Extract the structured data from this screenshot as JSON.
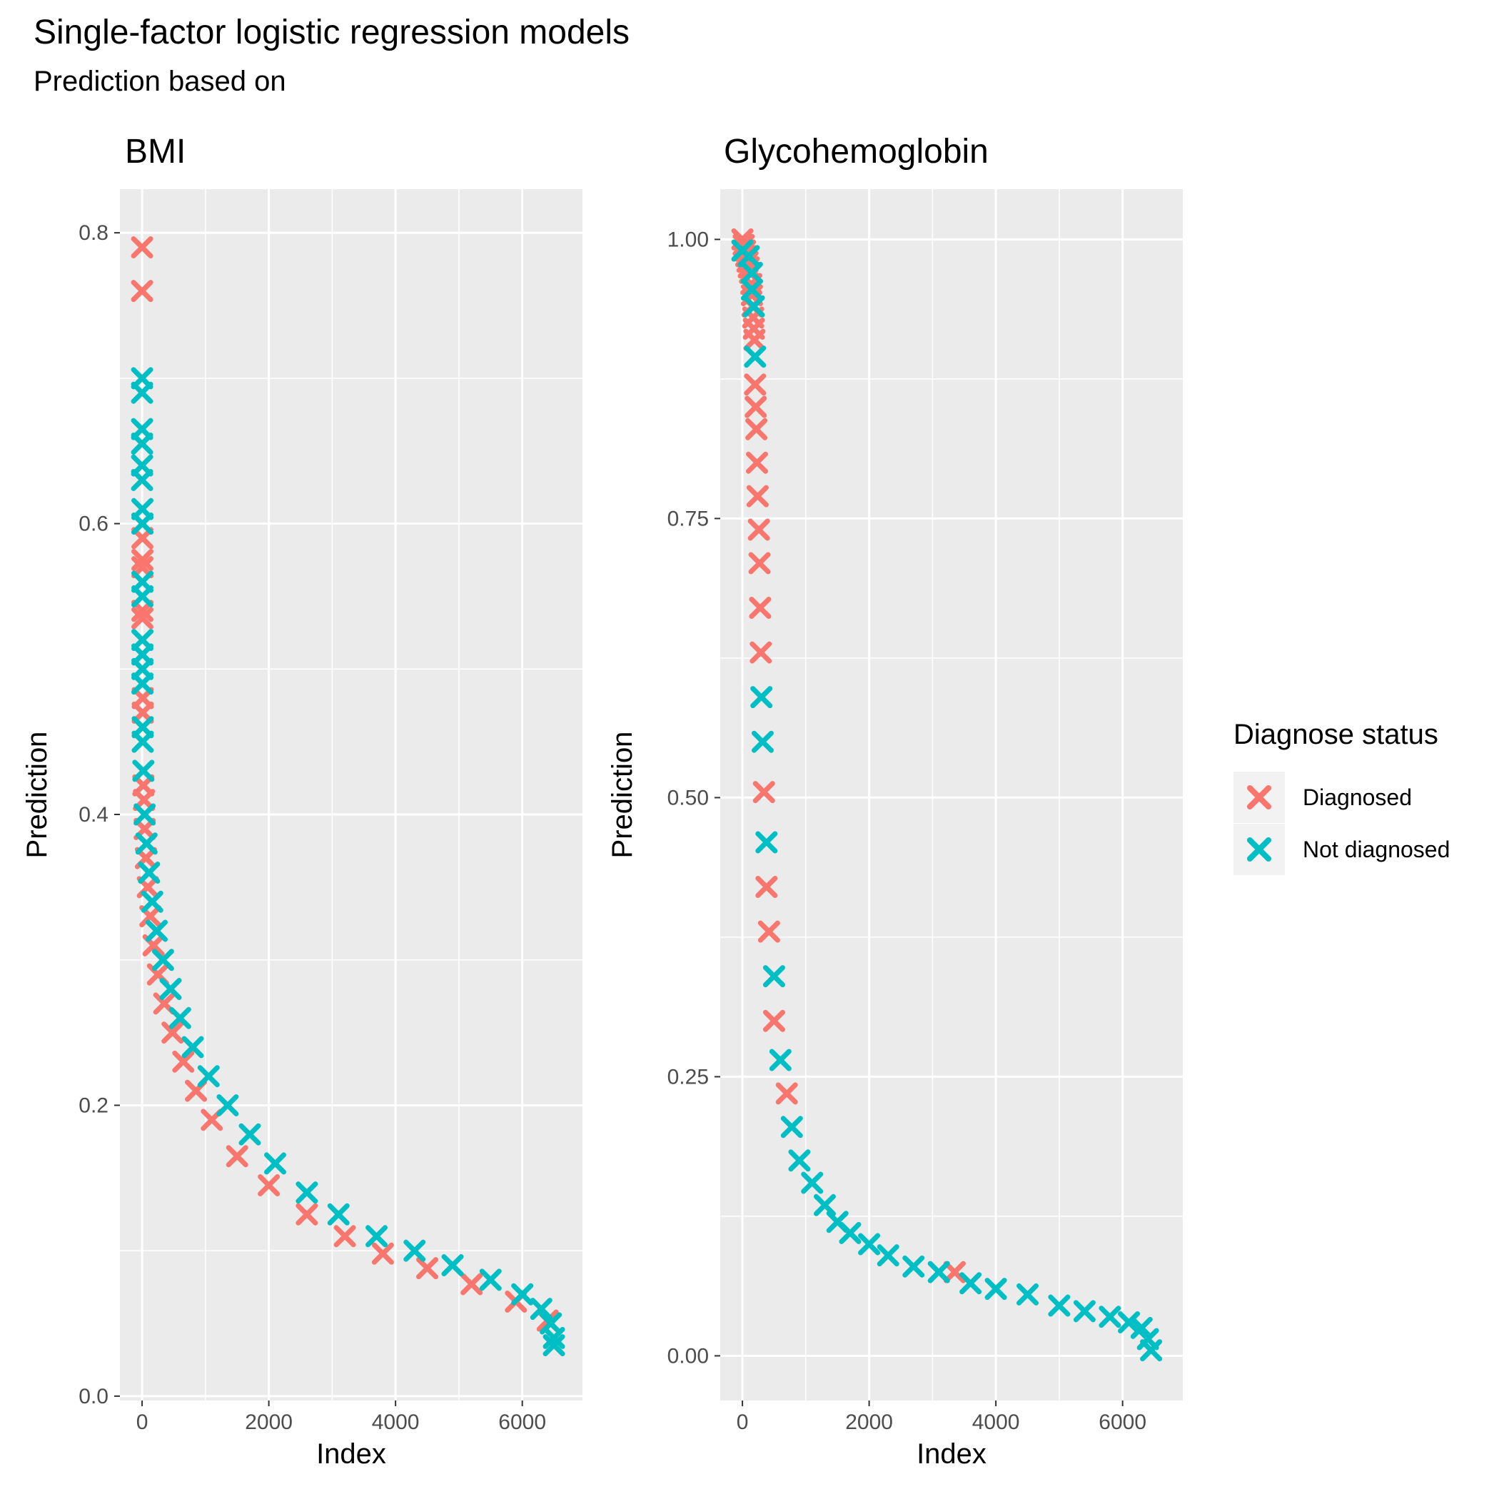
{
  "title": "Single-factor logistic regression models",
  "subtitle": "Prediction based on",
  "chart_data": [
    {
      "type": "scatter",
      "panel_title": "BMI",
      "xlabel": "Index",
      "ylabel": "Prediction",
      "xlim": [
        -350,
        6950
      ],
      "ylim": [
        -0.003,
        0.83
      ],
      "xticks": [
        0,
        2000,
        4000,
        6000
      ],
      "xtick_labels": [
        "0",
        "2000",
        "4000",
        "6000"
      ],
      "yticks": [
        0,
        0.2,
        0.4,
        0.6,
        0.8
      ],
      "ytick_labels": [
        "0.0",
        "0.2",
        "0.4",
        "0.6",
        "0.8"
      ],
      "grid": true,
      "series": [
        {
          "name": "Diagnosed",
          "color": "#F8766D",
          "points": [
            [
              0,
              0.79
            ],
            [
              0,
              0.76
            ],
            [
              5,
              0.6
            ],
            [
              5,
              0.59
            ],
            [
              5,
              0.575
            ],
            [
              5,
              0.57
            ],
            [
              5,
              0.54
            ],
            [
              5,
              0.535
            ],
            [
              10,
              0.48
            ],
            [
              10,
              0.47
            ],
            [
              20,
              0.42
            ],
            [
              30,
              0.41
            ],
            [
              40,
              0.39
            ],
            [
              60,
              0.37
            ],
            [
              90,
              0.35
            ],
            [
              130,
              0.33
            ],
            [
              180,
              0.31
            ],
            [
              250,
              0.29
            ],
            [
              350,
              0.27
            ],
            [
              480,
              0.25
            ],
            [
              650,
              0.23
            ],
            [
              850,
              0.21
            ],
            [
              1100,
              0.19
            ],
            [
              1500,
              0.165
            ],
            [
              2000,
              0.145
            ],
            [
              2600,
              0.125
            ],
            [
              3200,
              0.11
            ],
            [
              3800,
              0.098
            ],
            [
              4500,
              0.088
            ],
            [
              5200,
              0.077
            ],
            [
              5900,
              0.065
            ],
            [
              6400,
              0.052
            ]
          ]
        },
        {
          "name": "Not diagnosed",
          "color": "#00BFC4",
          "points": [
            [
              0,
              0.7
            ],
            [
              0,
              0.69
            ],
            [
              0,
              0.665
            ],
            [
              0,
              0.655
            ],
            [
              0,
              0.64
            ],
            [
              0,
              0.63
            ],
            [
              5,
              0.61
            ],
            [
              5,
              0.6
            ],
            [
              5,
              0.56
            ],
            [
              5,
              0.55
            ],
            [
              5,
              0.52
            ],
            [
              5,
              0.51
            ],
            [
              5,
              0.5
            ],
            [
              5,
              0.49
            ],
            [
              10,
              0.46
            ],
            [
              10,
              0.45
            ],
            [
              20,
              0.43
            ],
            [
              40,
              0.4
            ],
            [
              70,
              0.38
            ],
            [
              110,
              0.36
            ],
            [
              160,
              0.34
            ],
            [
              230,
              0.32
            ],
            [
              330,
              0.3
            ],
            [
              450,
              0.28
            ],
            [
              600,
              0.26
            ],
            [
              800,
              0.24
            ],
            [
              1050,
              0.22
            ],
            [
              1350,
              0.2
            ],
            [
              1700,
              0.18
            ],
            [
              2100,
              0.16
            ],
            [
              2600,
              0.14
            ],
            [
              3100,
              0.125
            ],
            [
              3700,
              0.11
            ],
            [
              4300,
              0.1
            ],
            [
              4900,
              0.09
            ],
            [
              5500,
              0.08
            ],
            [
              6000,
              0.07
            ],
            [
              6300,
              0.06
            ],
            [
              6450,
              0.05
            ],
            [
              6500,
              0.04
            ],
            [
              6500,
              0.035
            ]
          ]
        }
      ]
    },
    {
      "type": "scatter",
      "panel_title": "Glycohemoglobin",
      "xlabel": "Index",
      "ylabel": "Prediction",
      "xlim": [
        -350,
        6950
      ],
      "ylim": [
        -0.04,
        1.045
      ],
      "xticks": [
        0,
        2000,
        4000,
        6000
      ],
      "xtick_labels": [
        "0",
        "2000",
        "4000",
        "6000"
      ],
      "yticks": [
        0,
        0.25,
        0.5,
        0.75,
        1.0
      ],
      "ytick_labels": [
        "0.00",
        "0.25",
        "0.50",
        "0.75",
        "1.00"
      ],
      "grid": true,
      "series": [
        {
          "name": "Diagnosed",
          "color": "#F8766D",
          "points": [
            [
              0,
              1.0
            ],
            [
              20,
              0.995
            ],
            [
              40,
              0.99
            ],
            [
              60,
              0.985
            ],
            [
              80,
              0.98
            ],
            [
              100,
              0.975
            ],
            [
              120,
              0.97
            ],
            [
              140,
              0.96
            ],
            [
              150,
              0.95
            ],
            [
              160,
              0.94
            ],
            [
              170,
              0.93
            ],
            [
              180,
              0.92
            ],
            [
              190,
              0.91
            ],
            [
              200,
              0.87
            ],
            [
              210,
              0.85
            ],
            [
              220,
              0.83
            ],
            [
              230,
              0.8
            ],
            [
              240,
              0.77
            ],
            [
              260,
              0.74
            ],
            [
              270,
              0.71
            ],
            [
              280,
              0.67
            ],
            [
              290,
              0.63
            ],
            [
              340,
              0.505
            ],
            [
              380,
              0.42
            ],
            [
              420,
              0.38
            ],
            [
              500,
              0.3
            ],
            [
              700,
              0.235
            ],
            [
              3350,
              0.075
            ]
          ]
        },
        {
          "name": "Not diagnosed",
          "color": "#00BFC4",
          "points": [
            [
              0,
              0.99
            ],
            [
              100,
              0.985
            ],
            [
              150,
              0.97
            ],
            [
              150,
              0.955
            ],
            [
              180,
              0.94
            ],
            [
              200,
              0.895
            ],
            [
              300,
              0.59
            ],
            [
              320,
              0.55
            ],
            [
              380,
              0.46
            ],
            [
              500,
              0.34
            ],
            [
              600,
              0.265
            ],
            [
              780,
              0.205
            ],
            [
              900,
              0.175
            ],
            [
              1100,
              0.155
            ],
            [
              1300,
              0.135
            ],
            [
              1500,
              0.12
            ],
            [
              1700,
              0.11
            ],
            [
              2000,
              0.1
            ],
            [
              2300,
              0.09
            ],
            [
              2700,
              0.08
            ],
            [
              3100,
              0.075
            ],
            [
              3600,
              0.065
            ],
            [
              4000,
              0.06
            ],
            [
              4500,
              0.055
            ],
            [
              5000,
              0.045
            ],
            [
              5400,
              0.04
            ],
            [
              5800,
              0.035
            ],
            [
              6100,
              0.03
            ],
            [
              6300,
              0.025
            ],
            [
              6400,
              0.015
            ],
            [
              6450,
              0.005
            ]
          ]
        }
      ]
    }
  ],
  "legend": {
    "title": "Diagnose status",
    "items": [
      {
        "label": "Diagnosed",
        "color": "#F8766D"
      },
      {
        "label": "Not diagnosed",
        "color": "#00BFC4"
      }
    ]
  }
}
